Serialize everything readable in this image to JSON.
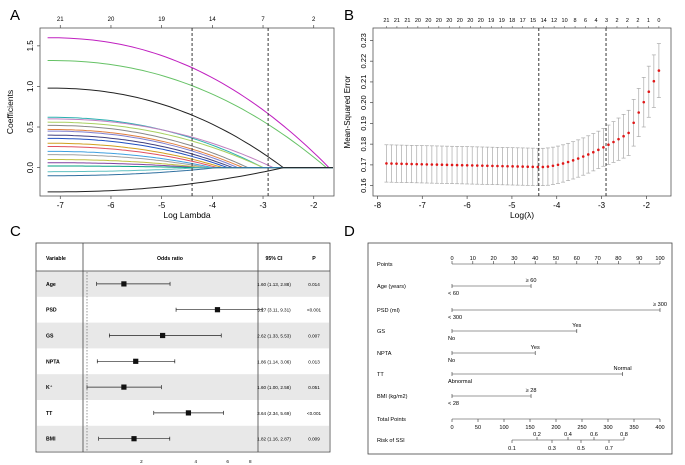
{
  "chart_data": [
    {
      "panel": "A",
      "type": "line",
      "title": "",
      "xlabel": "Log Lambda",
      "ylabel": "Coefficients",
      "xlim": [
        -7.4,
        -1.6
      ],
      "ylim": [
        -0.35,
        1.72
      ],
      "xticks": [
        -7,
        -6,
        -5,
        -4,
        -3,
        -2
      ],
      "yticks": [
        0.0,
        0.5,
        1.0,
        1.5
      ],
      "top_ticks": [
        {
          "x": -7.0,
          "label": "21"
        },
        {
          "x": -6.0,
          "label": "20"
        },
        {
          "x": -5.0,
          "label": "19"
        },
        {
          "x": -4.0,
          "label": "14"
        },
        {
          "x": -3.0,
          "label": "7"
        },
        {
          "x": -2.0,
          "label": "2"
        }
      ],
      "vlines": [
        -4.4,
        -2.9
      ],
      "series": [
        {
          "name": "v1",
          "color": "#c020c0",
          "start": 1.6,
          "end": -1.7
        },
        {
          "name": "v2",
          "color": "#66c266",
          "start": 1.32,
          "end": -1.75
        },
        {
          "name": "v3",
          "color": "#222222",
          "start": 0.98,
          "end": -2.6
        },
        {
          "name": "v4",
          "color": "#2ab0b0",
          "start": 0.62,
          "end": -3.0
        },
        {
          "name": "v5",
          "color": "#c080c0",
          "start": 0.6,
          "end": -2.8
        },
        {
          "name": "v6",
          "color": "#a8d060",
          "start": 0.56,
          "end": -3.0
        },
        {
          "name": "v7",
          "color": "#888888",
          "start": 0.52,
          "end": -3.3
        },
        {
          "name": "v8",
          "color": "#e08040",
          "start": 0.47,
          "end": -3.4
        },
        {
          "name": "v9",
          "color": "#8080d0",
          "start": 0.45,
          "end": -3.5
        },
        {
          "name": "v10",
          "color": "#404080",
          "start": 0.4,
          "end": -3.6
        },
        {
          "name": "v11",
          "color": "#2050c0",
          "start": 0.36,
          "end": -3.7
        },
        {
          "name": "v12",
          "color": "#d0a020",
          "start": 0.3,
          "end": -3.8
        },
        {
          "name": "v13",
          "color": "#e05060",
          "start": 0.26,
          "end": -3.9
        },
        {
          "name": "v14",
          "color": "#40a0e0",
          "start": 0.2,
          "end": -4.0
        },
        {
          "name": "v15",
          "color": "#a0a0a0",
          "start": 0.16,
          "end": -4.1
        },
        {
          "name": "v16",
          "color": "#c0c040",
          "start": 0.1,
          "end": -4.2
        },
        {
          "name": "v17",
          "color": "#8040a0",
          "start": 0.06,
          "end": -4.3
        },
        {
          "name": "v18",
          "color": "#00a080",
          "start": 0.02,
          "end": -4.4
        },
        {
          "name": "v19",
          "color": "#60c0c0",
          "start": -0.05,
          "end": -4.2
        },
        {
          "name": "v20",
          "color": "#3070a0",
          "start": -0.1,
          "end": -3.9
        },
        {
          "name": "v21",
          "color": "#222222",
          "start": -0.3,
          "end": -2.6
        }
      ]
    },
    {
      "panel": "B",
      "type": "scatter",
      "title": "",
      "xlabel": "Log(λ)",
      "ylabel": "Mean-Squared Error",
      "xlim": [
        -8.1,
        -1.45
      ],
      "ylim": [
        0.155,
        0.236
      ],
      "xticks": [
        -8,
        -7,
        -6,
        -5,
        -4,
        -3,
        -2
      ],
      "yticks": [
        0.16,
        0.17,
        0.18,
        0.19,
        0.2,
        0.21,
        0.22,
        0.23
      ],
      "top_labels": [
        "21",
        "21",
        "21",
        "20",
        "20",
        "20",
        "20",
        "20",
        "20",
        "20",
        "19",
        "19",
        "18",
        "17",
        "15",
        "14",
        "12",
        "10",
        "8",
        "6",
        "4",
        "3",
        "2",
        "2",
        "2",
        "1",
        "0"
      ],
      "vlines": [
        -4.4,
        -2.9
      ],
      "cv_curve": {
        "x_start": -7.8,
        "x_end": -1.72,
        "n_points": 55,
        "error_bar_halfwidth": 0.009
      }
    },
    {
      "panel": "C",
      "type": "table",
      "title": "",
      "x_axis_ticks": [
        2,
        4,
        6,
        8
      ],
      "reference_line_at": 1
    }
  ],
  "panel_labels": {
    "a": "A",
    "b": "B",
    "c": "C",
    "d": "D"
  },
  "forest": {
    "headers": {
      "variable": "Variable",
      "odds_ratio": "Odds ratio",
      "ci": "95% CI",
      "p": "P"
    },
    "rows": [
      {
        "variable": "Age",
        "or": 1.6,
        "low": 1.13,
        "high": 2.88,
        "ci": "1.60 (1.13, 2.88)",
        "p": "0.014"
      },
      {
        "variable": "PSD",
        "or": 5.27,
        "low": 3.11,
        "high": 9.31,
        "ci": "5.27 (3.11, 9.31)",
        "p": "<0.001"
      },
      {
        "variable": "GS",
        "or": 2.62,
        "low": 1.33,
        "high": 5.53,
        "ci": "2.62 (1.33, 5.53)",
        "p": "0.007"
      },
      {
        "variable": "NPTA",
        "or": 1.86,
        "low": 1.14,
        "high": 3.06,
        "ci": "1.86 (1.14, 3.06)",
        "p": "0.013"
      },
      {
        "variable": "K⁺",
        "or": 1.6,
        "low": 1.0,
        "high": 2.58,
        "ci": "1.60 (1.00, 2.58)",
        "p": "0.051"
      },
      {
        "variable": "TT",
        "or": 3.64,
        "low": 2.34,
        "high": 5.69,
        "ci": "3.64 (2.34, 5.69)",
        "p": "<0.001"
      },
      {
        "variable": "BMI",
        "or": 1.82,
        "low": 1.16,
        "high": 2.87,
        "ci": "1.82 (1.16, 2.87)",
        "p": "0.009"
      }
    ]
  },
  "nomogram": {
    "points_label": "Points",
    "points_ticks": [
      "0",
      "10",
      "20",
      "30",
      "40",
      "50",
      "60",
      "70",
      "80",
      "90",
      "100"
    ],
    "rows": [
      {
        "label": "Age  (years)",
        "span_points": 38,
        "upper": "≥ 60",
        "lower": "< 60"
      },
      {
        "label": "PSD  (ml)",
        "span_points": 100,
        "upper": "≥ 300",
        "lower": "< 300"
      },
      {
        "label": "GS",
        "span_points": 60,
        "upper": "Yes",
        "lower": "No"
      },
      {
        "label": "NPTA",
        "span_points": 40,
        "upper": "Yes",
        "lower": "No"
      },
      {
        "label": "TT",
        "span_points": 82,
        "upper": "Normal",
        "lower": "Abnormal"
      },
      {
        "label": "BMI  (kg/m2)",
        "span_points": 38,
        "upper": "≥ 28",
        "lower": "< 28"
      }
    ],
    "total_points_label": "Total Points",
    "total_ticks": [
      "0",
      "50",
      "100",
      "150",
      "200",
      "250",
      "300",
      "350",
      "400"
    ],
    "risk_label": "Risk of SSI",
    "risk_upper": [
      "0.2",
      "0.4",
      "0.6",
      "0.8"
    ],
    "risk_lower": [
      "0.1",
      "0.3",
      "0.5",
      "0.7"
    ]
  }
}
